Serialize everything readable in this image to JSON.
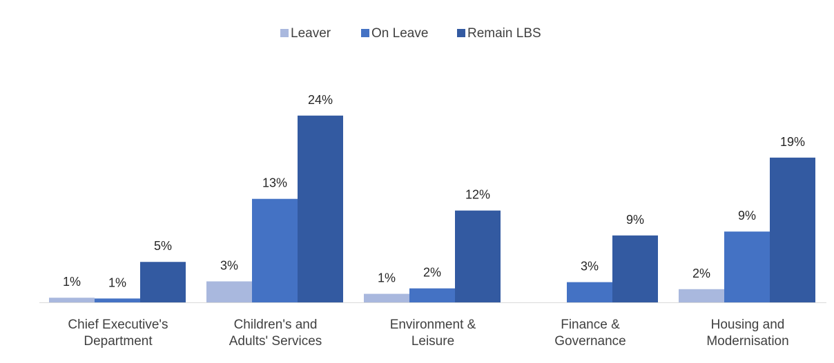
{
  "chart_data": {
    "type": "bar",
    "title": "",
    "xlabel": "",
    "ylabel": "",
    "ylim": [
      0,
      27
    ],
    "grid": false,
    "legend_position": "top-center",
    "categories": [
      [
        "Chief Executive's",
        "Department"
      ],
      [
        "Children's and",
        "Adults' Services"
      ],
      [
        "Environment &",
        "Leisure"
      ],
      [
        "Finance &",
        "Governance"
      ],
      [
        "Housing and",
        "Modernisation"
      ]
    ],
    "series": [
      {
        "name": "Leaver",
        "color": "#a9b8de",
        "values": [
          0.6,
          2.7,
          1.1,
          null,
          1.7
        ],
        "labels": [
          "1%",
          "3%",
          "1%",
          "",
          "2%"
        ]
      },
      {
        "name": "On Leave",
        "color": "#4472c4",
        "values": [
          0.5,
          13.3,
          1.8,
          2.6,
          9.1
        ],
        "labels": [
          "1%",
          "13%",
          "2%",
          "3%",
          "9%"
        ]
      },
      {
        "name": "Remain LBS",
        "color": "#335aa1",
        "values": [
          5.2,
          24.0,
          11.8,
          8.6,
          18.6
        ],
        "labels": [
          "5%",
          "24%",
          "12%",
          "9%",
          "19%"
        ]
      }
    ]
  }
}
